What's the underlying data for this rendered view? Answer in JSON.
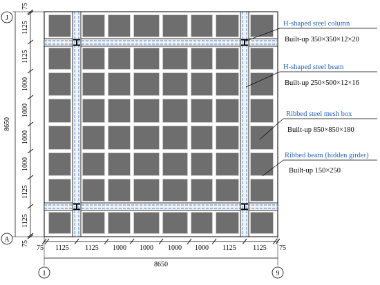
{
  "grid_axes": {
    "top": "J",
    "bottom": "A",
    "left": "1",
    "right": "9"
  },
  "dimensions": {
    "overall_vertical": "8650",
    "overall_horizontal": "8650",
    "edge": "75",
    "vertical_segments": [
      "75",
      "1125",
      "1125",
      "1000",
      "1000",
      "1000",
      "1000",
      "1125",
      "1125",
      "75"
    ],
    "horizontal_segments": [
      "75",
      "1125",
      "1125",
      "1000",
      "1000",
      "1000",
      "1000",
      "1125",
      "1125",
      "75"
    ]
  },
  "callouts": [
    {
      "title": "H-shaped steel column",
      "spec": "Built-up 350×350×12×20"
    },
    {
      "title": "H-shaped steel beam",
      "spec": "Built-up 250×500×12×16"
    },
    {
      "title": "Ribbed steel mesh box",
      "spec": "Built-up 850×850×180"
    },
    {
      "title": "Ribbed beam (hidden girder)",
      "spec": "Built-up 150×250"
    }
  ],
  "colors": {
    "box_fill": "#6e6e6e",
    "beam_dash": "#3f7fd9",
    "label_blue": "#1f5fbf"
  }
}
